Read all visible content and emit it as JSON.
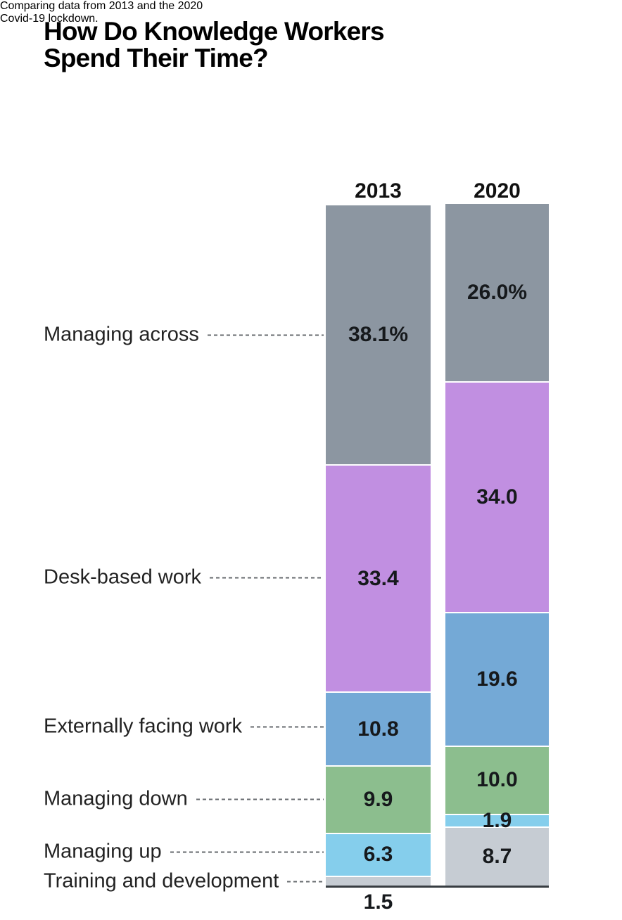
{
  "title_lines": [
    "How Do Knowledge Workers",
    "Spend Their Time?"
  ],
  "subtitle_lines": [
    "Comparing data from 2013 and the 2020",
    "Covid-19 lockdown."
  ],
  "chart_data": {
    "type": "bar",
    "subtype": "stacked-percentage-columns",
    "title": "How Do Knowledge Workers Spend Their Time?",
    "subtitle": "Comparing data from 2013 and the 2020 Covid-19 lockdown.",
    "categories": [
      "2013",
      "2020"
    ],
    "ylim": [
      0,
      100
    ],
    "grid": false,
    "legend_position": "left-leader-labels",
    "series": [
      {
        "name": "Managing across",
        "color": "#8C96A1",
        "values": [
          38.1,
          26.0
        ],
        "display": [
          "38.1%",
          "26.0%"
        ],
        "label_outside": [
          false,
          false
        ]
      },
      {
        "name": "Desk-based work",
        "color": "#C18FE1",
        "values": [
          33.4,
          34.0
        ],
        "display": [
          "33.4",
          "34.0"
        ],
        "label_outside": [
          false,
          false
        ]
      },
      {
        "name": "Externally facing work",
        "color": "#74A9D6",
        "values": [
          10.8,
          19.6
        ],
        "display": [
          "10.8",
          "19.6"
        ],
        "label_outside": [
          false,
          false
        ]
      },
      {
        "name": "Managing down",
        "color": "#8CBE8E",
        "values": [
          9.9,
          10.0
        ],
        "display": [
          "9.9",
          "10.0"
        ],
        "label_outside": [
          false,
          false
        ]
      },
      {
        "name": "Managing up",
        "color": "#85CEEC",
        "values": [
          6.3,
          1.9
        ],
        "display": [
          "6.3",
          "1.9"
        ],
        "label_outside": [
          false,
          false
        ]
      },
      {
        "name": "Training and development",
        "color": "#C6CCD3",
        "values": [
          1.5,
          8.7
        ],
        "display": [
          "1.5",
          "8.7"
        ],
        "label_outside": [
          true,
          false
        ]
      }
    ]
  }
}
